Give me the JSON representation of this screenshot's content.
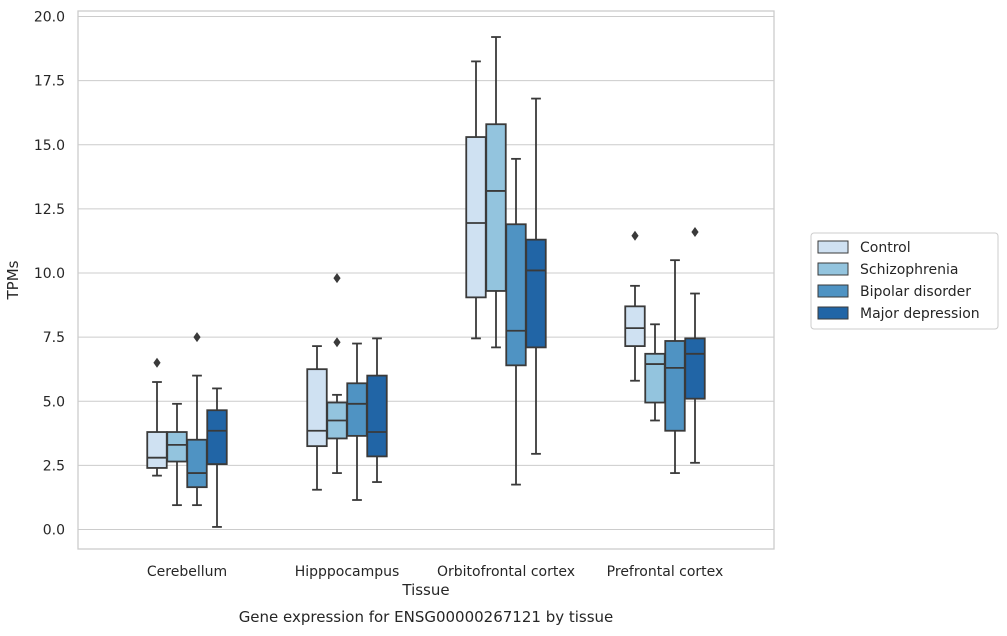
{
  "chart_data": {
    "type": "box",
    "title": "Gene expression for ENSG00000267121 by tissue",
    "xlabel": "Tissue",
    "ylabel": "TPMs",
    "ylim": [
      -0.8,
      20.2
    ],
    "yticks": [
      "0.0",
      "2.5",
      "5.0",
      "7.5",
      "10.0",
      "12.5",
      "15.0",
      "17.5",
      "20.0"
    ],
    "grid": "horizontal",
    "legend_position": "right",
    "categories": [
      "Cerebellum",
      "Hipppocampus",
      "Orbitofrontal cortex",
      "Prefrontal cortex"
    ],
    "series": [
      {
        "name": "Control",
        "color": "#cfe1f2",
        "boxes": [
          {
            "whisker_low": 2.1,
            "q1": 2.4,
            "median": 2.8,
            "q3": 3.8,
            "whisker_high": 5.75,
            "fliers": [
              6.5
            ]
          },
          {
            "whisker_low": 1.55,
            "q1": 3.25,
            "median": 3.85,
            "q3": 6.25,
            "whisker_high": 7.15,
            "fliers": []
          },
          {
            "whisker_low": 7.45,
            "q1": 9.05,
            "median": 11.95,
            "q3": 15.3,
            "whisker_high": 18.25,
            "fliers": []
          },
          {
            "whisker_low": 5.8,
            "q1": 7.15,
            "median": 7.85,
            "q3": 8.7,
            "whisker_high": 9.5,
            "fliers": [
              11.45
            ]
          }
        ]
      },
      {
        "name": "Schizophrenia",
        "color": "#93c4de",
        "boxes": [
          {
            "whisker_low": 0.95,
            "q1": 2.65,
            "median": 3.3,
            "q3": 3.8,
            "whisker_high": 4.9,
            "fliers": []
          },
          {
            "whisker_low": 2.2,
            "q1": 3.55,
            "median": 4.25,
            "q3": 4.95,
            "whisker_high": 5.25,
            "fliers": [
              7.3,
              9.8
            ]
          },
          {
            "whisker_low": 7.1,
            "q1": 9.3,
            "median": 13.2,
            "q3": 15.8,
            "whisker_high": 19.2,
            "fliers": []
          },
          {
            "whisker_low": 4.25,
            "q1": 4.95,
            "median": 6.45,
            "q3": 6.85,
            "whisker_high": 8.0,
            "fliers": []
          }
        ]
      },
      {
        "name": "Bipolar disorder",
        "color": "#4f93c3",
        "boxes": [
          {
            "whisker_low": 0.95,
            "q1": 1.65,
            "median": 2.2,
            "q3": 3.5,
            "whisker_high": 6.0,
            "fliers": [
              7.5
            ]
          },
          {
            "whisker_low": 1.15,
            "q1": 3.65,
            "median": 4.9,
            "q3": 5.7,
            "whisker_high": 7.25,
            "fliers": []
          },
          {
            "whisker_low": 1.75,
            "q1": 6.4,
            "median": 7.75,
            "q3": 11.9,
            "whisker_high": 14.45,
            "fliers": []
          },
          {
            "whisker_low": 2.2,
            "q1": 3.85,
            "median": 6.3,
            "q3": 7.35,
            "whisker_high": 10.5,
            "fliers": []
          }
        ]
      },
      {
        "name": "Major depression",
        "color": "#2165a6",
        "boxes": [
          {
            "whisker_low": 0.1,
            "q1": 2.55,
            "median": 3.85,
            "q3": 4.65,
            "whisker_high": 5.5,
            "fliers": []
          },
          {
            "whisker_low": 1.85,
            "q1": 2.85,
            "median": 3.8,
            "q3": 6.0,
            "whisker_high": 7.45,
            "fliers": []
          },
          {
            "whisker_low": 2.95,
            "q1": 7.1,
            "median": 10.1,
            "q3": 11.3,
            "whisker_high": 16.8,
            "fliers": []
          },
          {
            "whisker_low": 2.6,
            "q1": 5.1,
            "median": 6.85,
            "q3": 7.45,
            "whisker_high": 9.2,
            "fliers": [
              11.6
            ]
          }
        ]
      }
    ]
  }
}
